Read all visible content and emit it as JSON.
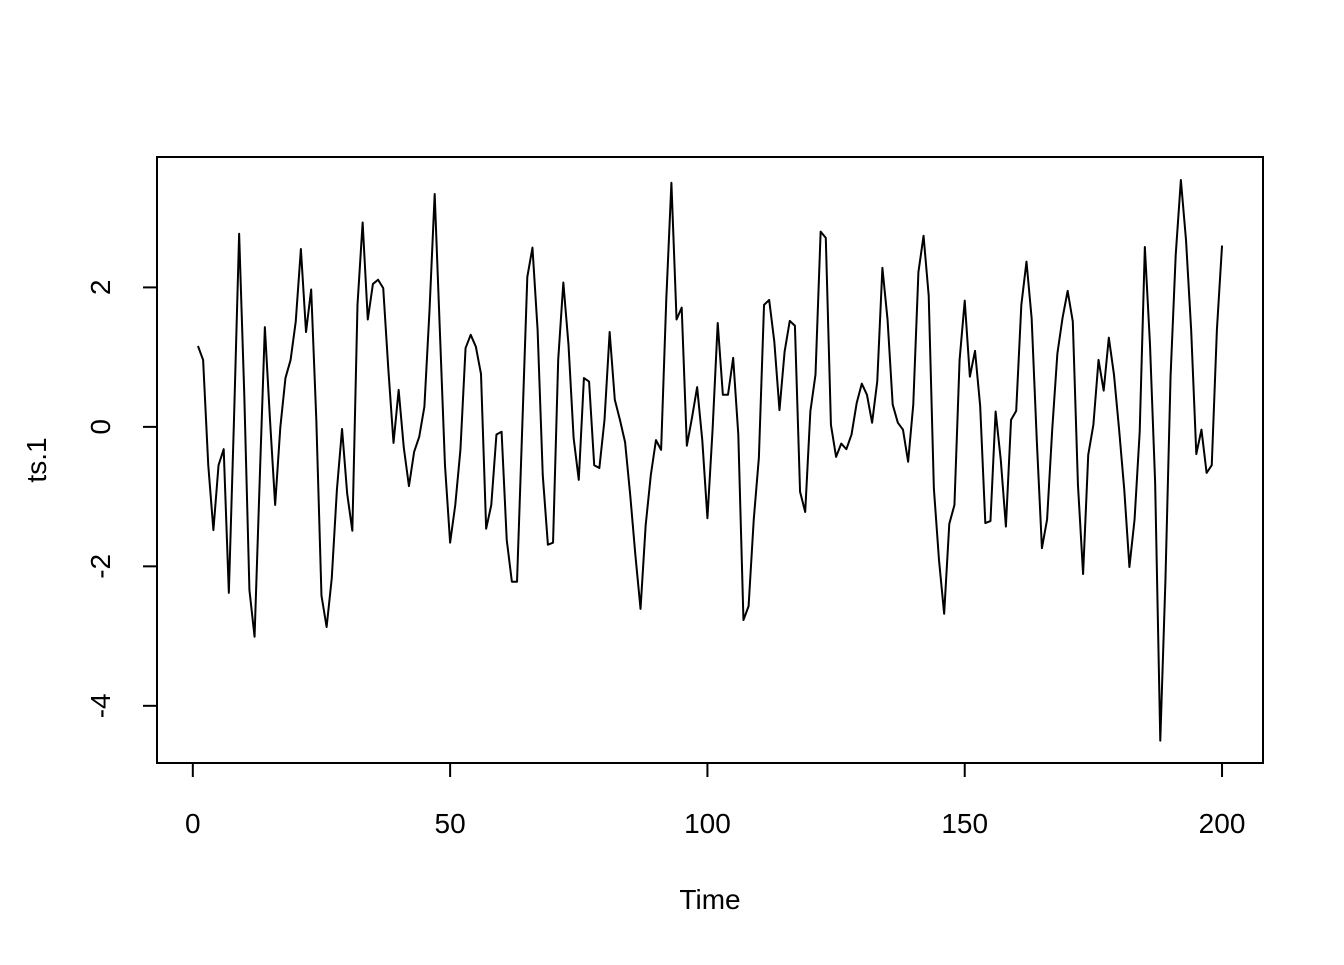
{
  "chart_data": {
    "type": "line",
    "x_label": "Time",
    "y_label": "ts.1",
    "color": "#000000",
    "x": [
      1,
      2,
      3,
      4,
      5,
      6,
      7,
      8,
      9,
      10,
      11,
      12,
      13,
      14,
      15,
      16,
      17,
      18,
      19,
      20,
      21,
      22,
      23,
      24,
      25,
      26,
      27,
      28,
      29,
      30,
      31,
      32,
      33,
      34,
      35,
      36,
      37,
      38,
      39,
      40,
      41,
      42,
      43,
      44,
      45,
      46,
      47,
      48,
      49,
      50,
      51,
      52,
      53,
      54,
      55,
      56,
      57,
      58,
      59,
      60,
      61,
      62,
      63,
      64,
      65,
      66,
      67,
      68,
      69,
      70,
      71,
      72,
      73,
      74,
      75,
      76,
      77,
      78,
      79,
      80,
      81,
      82,
      83,
      84,
      85,
      86,
      87,
      88,
      89,
      90,
      91,
      92,
      93,
      94,
      95,
      96,
      97,
      98,
      99,
      100,
      101,
      102,
      103,
      104,
      105,
      106,
      107,
      108,
      109,
      110,
      111,
      112,
      113,
      114,
      115,
      116,
      117,
      118,
      119,
      120,
      121,
      122,
      123,
      124,
      125,
      126,
      127,
      128,
      129,
      130,
      131,
      132,
      133,
      134,
      135,
      136,
      137,
      138,
      139,
      140,
      141,
      142,
      143,
      144,
      145,
      146,
      147,
      148,
      149,
      150,
      151,
      152,
      153,
      154,
      155,
      156,
      157,
      158,
      159,
      160,
      161,
      162,
      163,
      164,
      165,
      166,
      167,
      168,
      169,
      170,
      171,
      172,
      173,
      174,
      175,
      176,
      177,
      178,
      179,
      180,
      181,
      182,
      183,
      184,
      185,
      186,
      187,
      188,
      189,
      190,
      191,
      192,
      193,
      194,
      195,
      196,
      197,
      198,
      199,
      200
    ],
    "values": [
      1.16,
      0.96,
      -0.55,
      -1.48,
      -0.55,
      -0.32,
      -2.38,
      0.1,
      2.77,
      0.46,
      -2.34,
      -3.01,
      -0.76,
      1.43,
      0.1,
      -1.12,
      -0.01,
      0.7,
      0.96,
      1.51,
      2.55,
      1.36,
      1.97,
      0.1,
      -2.42,
      -2.87,
      -2.17,
      -0.9,
      -0.03,
      -0.96,
      -1.49,
      1.75,
      2.93,
      1.54,
      2.05,
      2.11,
      1.99,
      0.82,
      -0.23,
      0.53,
      -0.3,
      -0.85,
      -0.36,
      -0.14,
      0.29,
      1.68,
      3.34,
      1.39,
      -0.55,
      -1.66,
      -1.12,
      -0.33,
      1.13,
      1.32,
      1.15,
      0.76,
      -1.46,
      -1.12,
      -0.11,
      -0.07,
      -1.62,
      -2.22,
      -2.22,
      -0.04,
      2.15,
      2.57,
      1.39,
      -0.69,
      -1.69,
      -1.66,
      0.96,
      2.07,
      1.18,
      -0.16,
      -0.76,
      0.7,
      0.65,
      -0.55,
      -0.59,
      0.1,
      1.36,
      0.39,
      0.1,
      -0.22,
      -0.98,
      -1.84,
      -2.61,
      -1.41,
      -0.69,
      -0.19,
      -0.33,
      1.82,
      3.5,
      1.54,
      1.71,
      -0.27,
      0.13,
      0.57,
      -0.19,
      -1.31,
      -0.04,
      1.49,
      0.46,
      0.46,
      0.99,
      -0.11,
      -2.77,
      -2.57,
      -1.33,
      -0.44,
      1.75,
      1.82,
      1.22,
      0.24,
      1.08,
      1.52,
      1.45,
      -0.93,
      -1.22,
      0.22,
      0.75,
      2.8,
      2.71,
      0.03,
      -0.43,
      -0.24,
      -0.32,
      -0.11,
      0.34,
      0.62,
      0.46,
      0.06,
      0.65,
      2.28,
      1.54,
      0.32,
      0.06,
      -0.04,
      -0.5,
      0.32,
      2.22,
      2.74,
      1.88,
      -0.88,
      -1.91,
      -2.68,
      -1.39,
      -1.12,
      0.96,
      1.81,
      0.72,
      1.09,
      0.3,
      -1.38,
      -1.35,
      0.22,
      -0.47,
      -1.43,
      0.1,
      0.23,
      1.75,
      2.37,
      1.56,
      -0.19,
      -1.74,
      -1.33,
      -0.04,
      1.05,
      1.56,
      1.95,
      1.51,
      -0.83,
      -2.11,
      -0.4,
      0.03,
      0.96,
      0.52,
      1.28,
      0.75,
      -0.04,
      -0.9,
      -2.01,
      -1.33,
      -0.07,
      2.58,
      1.18,
      -0.8,
      -4.5,
      -2.2,
      0.73,
      2.47,
      3.54,
      2.68,
      1.39,
      -0.39,
      -0.04,
      -0.66,
      -0.55,
      1.39,
      2.6
    ],
    "xlim": [
      -6.96,
      207.96
    ],
    "ylim": [
      -4.82,
      3.87
    ],
    "xticks": [
      0,
      50,
      100,
      150,
      200
    ],
    "yticks": [
      -4,
      -2,
      0,
      2
    ]
  }
}
